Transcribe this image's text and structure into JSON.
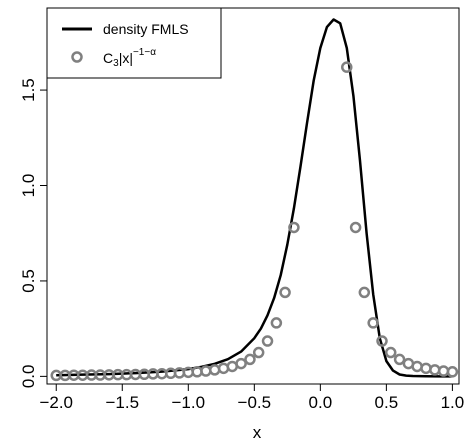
{
  "chart_data": {
    "type": "line",
    "xlabel": "x",
    "ylabel": "",
    "xlim": [
      -2.07,
      1.05
    ],
    "ylim": [
      -0.04,
      1.93
    ],
    "x_ticks": [
      -2.0,
      -1.5,
      -1.0,
      -0.5,
      0.0,
      0.5,
      1.0
    ],
    "x_tick_labels": [
      "−2.0",
      "−1.5",
      "−1.0",
      "−0.5",
      "0.0",
      "0.5",
      "1.0"
    ],
    "y_ticks": [
      0.0,
      0.5,
      1.0,
      1.5
    ],
    "y_tick_labels": [
      "0.0",
      "0.5",
      "1.0",
      "1.5"
    ],
    "grid": false,
    "legend": {
      "position": "top-left",
      "entries": [
        {
          "label": "density FMLS",
          "symbol": "line"
        },
        {
          "label_base": "C",
          "label_sub": "3",
          "label_mid": "|x|",
          "label_sup": "−1−α",
          "symbol": "circle"
        }
      ]
    },
    "series": [
      {
        "name": "density FMLS",
        "type": "line",
        "color": "#000000",
        "x": [
          -2.0,
          -1.8,
          -1.6,
          -1.4,
          -1.2,
          -1.0,
          -0.9,
          -0.8,
          -0.7,
          -0.6,
          -0.5,
          -0.45,
          -0.4,
          -0.35,
          -0.3,
          -0.25,
          -0.2,
          -0.15,
          -0.1,
          -0.05,
          0.0,
          0.05,
          0.1,
          0.15,
          0.2,
          0.25,
          0.3,
          0.35,
          0.4,
          0.45,
          0.5,
          0.55,
          0.6,
          0.65,
          0.7,
          0.8,
          0.9,
          1.0
        ],
        "y": [
          0.006,
          0.009,
          0.012,
          0.017,
          0.025,
          0.038,
          0.05,
          0.066,
          0.09,
          0.13,
          0.2,
          0.25,
          0.32,
          0.41,
          0.53,
          0.69,
          0.88,
          1.1,
          1.33,
          1.55,
          1.72,
          1.83,
          1.87,
          1.85,
          1.72,
          1.47,
          1.13,
          0.75,
          0.43,
          0.2,
          0.08,
          0.03,
          0.01,
          0.004,
          0.002,
          0.001,
          0.0,
          0.0
        ]
      },
      {
        "name": "C3|x|^-1-alpha",
        "type": "scatter",
        "color": "#808080",
        "x": [
          -2.0,
          -1.933,
          -1.867,
          -1.8,
          -1.733,
          -1.667,
          -1.6,
          -1.533,
          -1.467,
          -1.4,
          -1.333,
          -1.267,
          -1.2,
          -1.133,
          -1.067,
          -1.0,
          -0.933,
          -0.867,
          -0.8,
          -0.733,
          -0.667,
          -0.6,
          -0.533,
          -0.467,
          -0.4,
          -0.333,
          -0.267,
          -0.2,
          0.2,
          0.267,
          0.333,
          0.4,
          0.467,
          0.533,
          0.6,
          0.667,
          0.733,
          0.8,
          0.867,
          0.933,
          1.0
        ],
        "y": [
          0.005,
          0.005,
          0.006,
          0.006,
          0.007,
          0.007,
          0.008,
          0.009,
          0.009,
          0.01,
          0.011,
          0.013,
          0.014,
          0.016,
          0.018,
          0.021,
          0.024,
          0.028,
          0.034,
          0.042,
          0.052,
          0.067,
          0.089,
          0.125,
          0.185,
          0.28,
          0.44,
          0.78,
          1.62,
          0.78,
          0.44,
          0.28,
          0.185,
          0.125,
          0.089,
          0.067,
          0.052,
          0.042,
          0.034,
          0.028,
          0.024
        ]
      }
    ]
  }
}
